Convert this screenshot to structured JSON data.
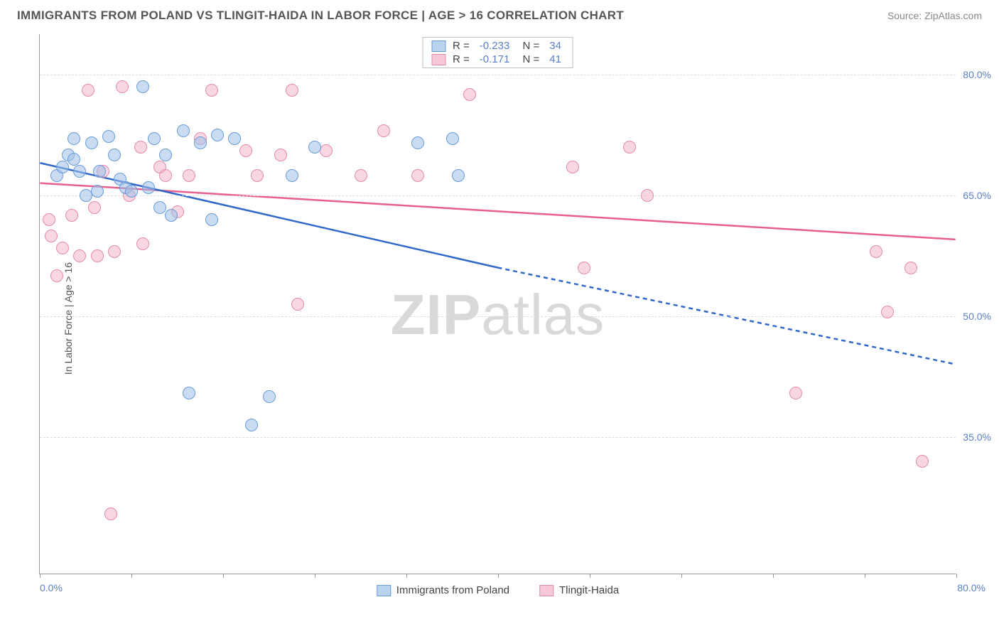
{
  "header": {
    "title": "IMMIGRANTS FROM POLAND VS TLINGIT-HAIDA IN LABOR FORCE | AGE > 16 CORRELATION CHART",
    "source": "Source: ZipAtlas.com"
  },
  "watermark": {
    "part1": "ZIP",
    "part2": "atlas"
  },
  "chart": {
    "type": "scatter",
    "y_axis_title": "In Labor Force | Age > 16",
    "xlim": [
      0,
      80
    ],
    "ylim": [
      18,
      85
    ],
    "x_tick_positions": [
      0,
      8,
      16,
      24,
      32,
      40,
      48,
      56,
      64,
      72,
      80
    ],
    "x_label_min": "0.0%",
    "x_label_max": "80.0%",
    "y_ticks": [
      {
        "pos": 35,
        "label": "35.0%"
      },
      {
        "pos": 50,
        "label": "50.0%"
      },
      {
        "pos": 65,
        "label": "65.0%"
      },
      {
        "pos": 80,
        "label": "80.0%"
      }
    ],
    "background_color": "#ffffff",
    "grid_color": "#dcdcdc",
    "marker_radius": 9,
    "colors": {
      "blue_fill": "rgba(156,192,232,0.55)",
      "blue_stroke": "#6a9bd8",
      "blue_line": "#3068c8",
      "pink_fill": "rgba(244,176,196,0.5)",
      "pink_stroke": "#e48aa8",
      "pink_line": "#e85f8e"
    },
    "series": [
      {
        "name": "Immigrants from Poland",
        "key": "blue",
        "R": "-0.233",
        "N": "34",
        "trend": {
          "x1": 0,
          "y1": 69.0,
          "x2": 40,
          "y2": 56.0,
          "extrap_x2": 80,
          "extrap_y2": 44.0
        },
        "points": [
          {
            "x": 1.5,
            "y": 67.5
          },
          {
            "x": 2.0,
            "y": 68.5
          },
          {
            "x": 2.5,
            "y": 70.0
          },
          {
            "x": 3.0,
            "y": 69.5
          },
          {
            "x": 3.5,
            "y": 68.0
          },
          {
            "x": 3.0,
            "y": 72.0
          },
          {
            "x": 4.0,
            "y": 65.0
          },
          {
            "x": 4.5,
            "y": 71.5
          },
          {
            "x": 5.0,
            "y": 65.5
          },
          {
            "x": 5.2,
            "y": 68.0
          },
          {
            "x": 6.0,
            "y": 72.3
          },
          {
            "x": 6.5,
            "y": 70.0
          },
          {
            "x": 7.0,
            "y": 67.0
          },
          {
            "x": 7.5,
            "y": 66.0
          },
          {
            "x": 8.0,
            "y": 65.5
          },
          {
            "x": 9.0,
            "y": 78.5
          },
          {
            "x": 9.5,
            "y": 66.0
          },
          {
            "x": 10.0,
            "y": 72.0
          },
          {
            "x": 10.5,
            "y": 63.5
          },
          {
            "x": 11.0,
            "y": 70.0
          },
          {
            "x": 11.5,
            "y": 62.5
          },
          {
            "x": 12.5,
            "y": 73.0
          },
          {
            "x": 13.0,
            "y": 40.5
          },
          {
            "x": 14.0,
            "y": 71.5
          },
          {
            "x": 15.0,
            "y": 62.0
          },
          {
            "x": 15.5,
            "y": 72.5
          },
          {
            "x": 17.0,
            "y": 72.0
          },
          {
            "x": 18.5,
            "y": 36.5
          },
          {
            "x": 20.0,
            "y": 40.0
          },
          {
            "x": 22.0,
            "y": 67.5
          },
          {
            "x": 24.0,
            "y": 71.0
          },
          {
            "x": 33.0,
            "y": 71.5
          },
          {
            "x": 36.0,
            "y": 72.0
          },
          {
            "x": 36.5,
            "y": 67.5
          }
        ]
      },
      {
        "name": "Tlingit-Haida",
        "key": "pink",
        "R": "-0.171",
        "N": "41",
        "trend": {
          "x1": 0,
          "y1": 66.5,
          "x2": 80,
          "y2": 59.5
        },
        "points": [
          {
            "x": 0.8,
            "y": 62.0
          },
          {
            "x": 1.0,
            "y": 60.0
          },
          {
            "x": 1.5,
            "y": 55.0
          },
          {
            "x": 2.0,
            "y": 58.5
          },
          {
            "x": 2.8,
            "y": 62.5
          },
          {
            "x": 3.5,
            "y": 57.5
          },
          {
            "x": 4.2,
            "y": 78.0
          },
          {
            "x": 4.8,
            "y": 63.5
          },
          {
            "x": 5.0,
            "y": 57.5
          },
          {
            "x": 5.5,
            "y": 68.0
          },
          {
            "x": 6.2,
            "y": 25.5
          },
          {
            "x": 6.5,
            "y": 58.0
          },
          {
            "x": 7.2,
            "y": 78.5
          },
          {
            "x": 7.8,
            "y": 65.0
          },
          {
            "x": 8.8,
            "y": 71.0
          },
          {
            "x": 9.0,
            "y": 59.0
          },
          {
            "x": 10.5,
            "y": 68.5
          },
          {
            "x": 11.0,
            "y": 67.5
          },
          {
            "x": 12.0,
            "y": 63.0
          },
          {
            "x": 13.0,
            "y": 67.5
          },
          {
            "x": 14.0,
            "y": 72.0
          },
          {
            "x": 15.0,
            "y": 78.0
          },
          {
            "x": 18.0,
            "y": 70.5
          },
          {
            "x": 19.0,
            "y": 67.5
          },
          {
            "x": 21.0,
            "y": 70.0
          },
          {
            "x": 22.0,
            "y": 78.0
          },
          {
            "x": 22.5,
            "y": 51.5
          },
          {
            "x": 25.0,
            "y": 70.5
          },
          {
            "x": 28.0,
            "y": 67.5
          },
          {
            "x": 30.0,
            "y": 73.0
          },
          {
            "x": 33.0,
            "y": 67.5
          },
          {
            "x": 37.5,
            "y": 77.5
          },
          {
            "x": 46.5,
            "y": 68.5
          },
          {
            "x": 47.5,
            "y": 56.0
          },
          {
            "x": 51.5,
            "y": 71.0
          },
          {
            "x": 53.0,
            "y": 65.0
          },
          {
            "x": 66.0,
            "y": 40.5
          },
          {
            "x": 73.0,
            "y": 58.0
          },
          {
            "x": 74.0,
            "y": 50.5
          },
          {
            "x": 76.0,
            "y": 56.0
          },
          {
            "x": 77.0,
            "y": 32.0
          }
        ]
      }
    ]
  },
  "bottom_legend": [
    {
      "key": "blue",
      "label": "Immigrants from Poland"
    },
    {
      "key": "pink",
      "label": "Tlingit-Haida"
    }
  ]
}
